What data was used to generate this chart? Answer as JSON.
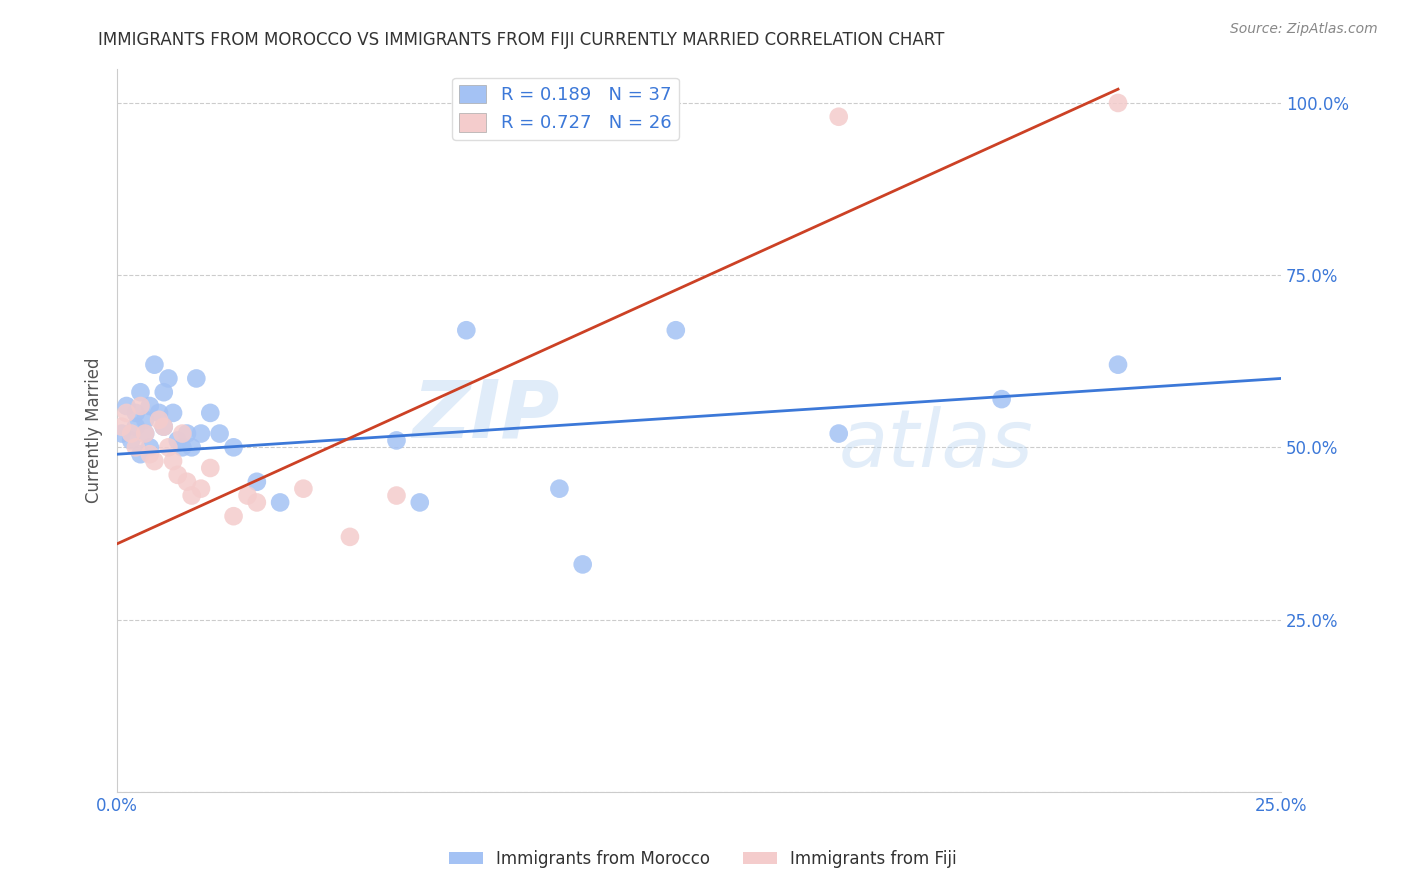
{
  "title": "IMMIGRANTS FROM MOROCCO VS IMMIGRANTS FROM FIJI CURRENTLY MARRIED CORRELATION CHART",
  "source": "Source: ZipAtlas.com",
  "xlabel": "",
  "ylabel": "Currently Married",
  "xlim": [
    0.0,
    0.25
  ],
  "ylim": [
    0.0,
    1.05
  ],
  "yticks": [
    0.0,
    0.25,
    0.5,
    0.75,
    1.0
  ],
  "ytick_labels": [
    "",
    "25.0%",
    "50.0%",
    "75.0%",
    "100.0%"
  ],
  "xticks": [
    0.0,
    0.05,
    0.1,
    0.15,
    0.2,
    0.25
  ],
  "xtick_labels": [
    "0.0%",
    "",
    "",
    "",
    "",
    "25.0%"
  ],
  "morocco_R": 0.189,
  "morocco_N": 37,
  "fiji_R": 0.727,
  "fiji_N": 26,
  "morocco_color": "#a4c2f4",
  "fiji_color": "#f4cccc",
  "trendline_morocco_color": "#3c78d8",
  "trendline_fiji_color": "#cc4125",
  "watermark_zip": "ZIP",
  "watermark_atlas": "atlas",
  "morocco_x": [
    0.001,
    0.002,
    0.003,
    0.004,
    0.004,
    0.005,
    0.005,
    0.006,
    0.006,
    0.007,
    0.007,
    0.008,
    0.009,
    0.01,
    0.01,
    0.011,
    0.012,
    0.013,
    0.014,
    0.015,
    0.016,
    0.017,
    0.018,
    0.02,
    0.022,
    0.025,
    0.03,
    0.035,
    0.06,
    0.065,
    0.075,
    0.095,
    0.1,
    0.12,
    0.155,
    0.19,
    0.215
  ],
  "morocco_y": [
    0.52,
    0.56,
    0.51,
    0.53,
    0.55,
    0.49,
    0.58,
    0.52,
    0.54,
    0.5,
    0.56,
    0.62,
    0.55,
    0.53,
    0.58,
    0.6,
    0.55,
    0.51,
    0.5,
    0.52,
    0.5,
    0.6,
    0.52,
    0.55,
    0.52,
    0.5,
    0.45,
    0.42,
    0.51,
    0.42,
    0.67,
    0.44,
    0.33,
    0.67,
    0.52,
    0.57,
    0.62
  ],
  "fiji_x": [
    0.001,
    0.002,
    0.003,
    0.004,
    0.005,
    0.006,
    0.007,
    0.008,
    0.009,
    0.01,
    0.011,
    0.012,
    0.013,
    0.014,
    0.015,
    0.016,
    0.018,
    0.02,
    0.025,
    0.028,
    0.03,
    0.04,
    0.05,
    0.06,
    0.155,
    0.215
  ],
  "fiji_y": [
    0.53,
    0.55,
    0.52,
    0.5,
    0.56,
    0.52,
    0.49,
    0.48,
    0.54,
    0.53,
    0.5,
    0.48,
    0.46,
    0.52,
    0.45,
    0.43,
    0.44,
    0.47,
    0.4,
    0.43,
    0.42,
    0.44,
    0.37,
    0.43,
    0.98,
    1.0
  ],
  "trendline_fiji_x0": 0.0,
  "trendline_fiji_y0": 0.36,
  "trendline_fiji_x1": 0.215,
  "trendline_fiji_y1": 1.02,
  "trendline_morocco_x0": 0.0,
  "trendline_morocco_y0": 0.49,
  "trendline_morocco_x1": 0.25,
  "trendline_morocco_y1": 0.6
}
